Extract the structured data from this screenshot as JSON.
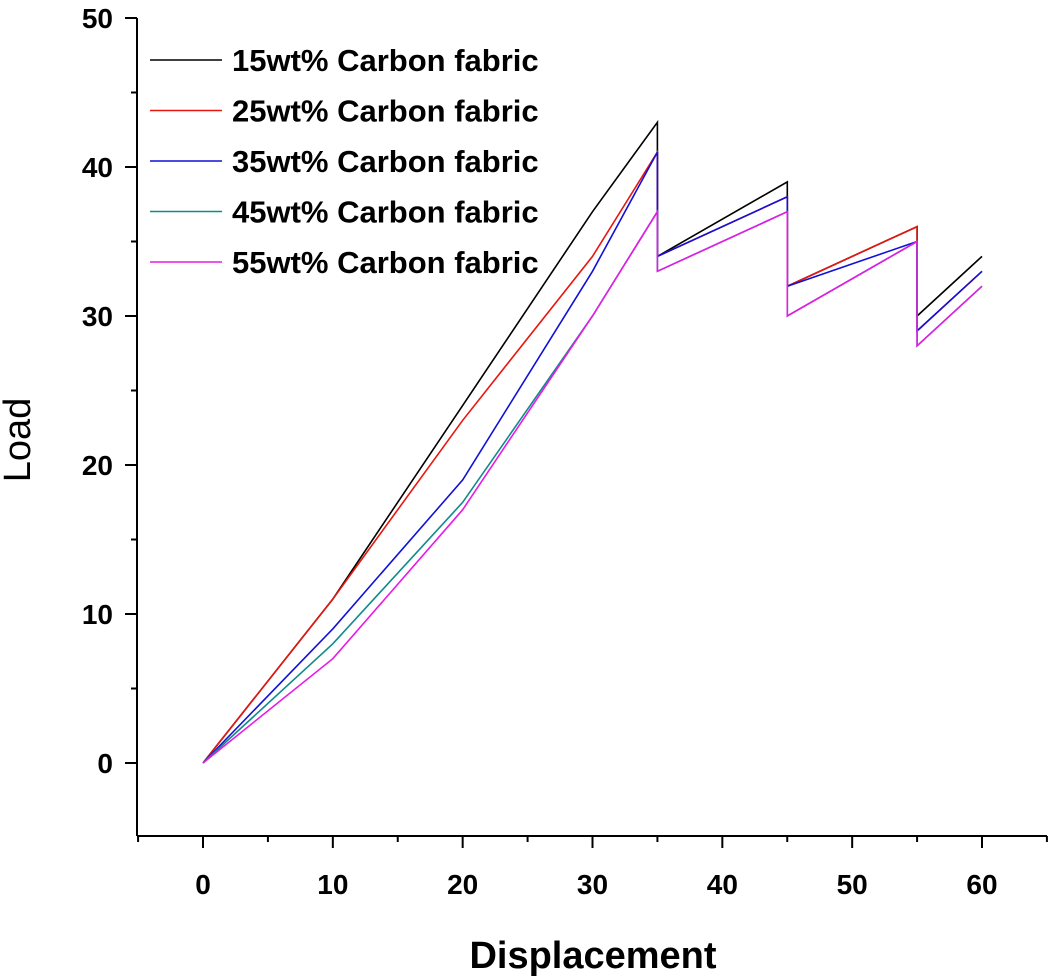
{
  "chart_data": {
    "type": "line",
    "title": "",
    "xlabel": "Displacement",
    "ylabel": "Load",
    "xlim": [
      -5,
      65
    ],
    "ylim": [
      -5,
      50
    ],
    "xticks": [
      0,
      10,
      20,
      30,
      40,
      50,
      60
    ],
    "xtick_labels": [
      "0",
      "10",
      "20",
      "30",
      "40",
      "50",
      "60"
    ],
    "yticks": [
      0,
      10,
      20,
      30,
      40,
      50
    ],
    "ytick_labels": [
      "0",
      "10",
      "20",
      "30",
      "40",
      "50"
    ],
    "grid": false,
    "legend_position": "top-left",
    "series": [
      {
        "name": "15wt% Carbon fabric",
        "color": "#000000",
        "x": [
          0,
          10,
          20,
          30,
          35,
          35,
          45,
          45,
          55,
          55,
          60
        ],
        "y": [
          0,
          11,
          24,
          37,
          43,
          34,
          39,
          32,
          36,
          30,
          34
        ]
      },
      {
        "name": "25wt% Carbon fabric",
        "color": "#e8160f",
        "x": [
          0,
          10,
          20,
          30,
          35,
          35,
          45,
          45,
          55,
          55,
          60
        ],
        "y": [
          0,
          11,
          23,
          34,
          41,
          34,
          38,
          32,
          36,
          29,
          33
        ]
      },
      {
        "name": "35wt% Carbon fabric",
        "color": "#1111d8",
        "x": [
          0,
          10,
          20,
          30,
          35,
          35,
          45,
          45,
          55,
          55,
          60
        ],
        "y": [
          0,
          9,
          19,
          33,
          41,
          34,
          38,
          32,
          35,
          29,
          33
        ]
      },
      {
        "name": "45wt% Carbon fabric",
        "color": "#0f8a8a",
        "x": [
          0,
          10,
          20,
          30,
          35,
          35,
          45,
          45,
          55,
          55,
          60
        ],
        "y": [
          0,
          8,
          17.5,
          30,
          37,
          33,
          37,
          30,
          35,
          28,
          32
        ]
      },
      {
        "name": "55wt% Carbon fabric",
        "color": "#e81ae8",
        "x": [
          0,
          10,
          20,
          30,
          35,
          35,
          45,
          45,
          55,
          55,
          60
        ],
        "y": [
          0,
          7,
          17,
          30,
          37,
          33,
          37,
          30,
          35,
          28,
          32
        ]
      }
    ]
  }
}
